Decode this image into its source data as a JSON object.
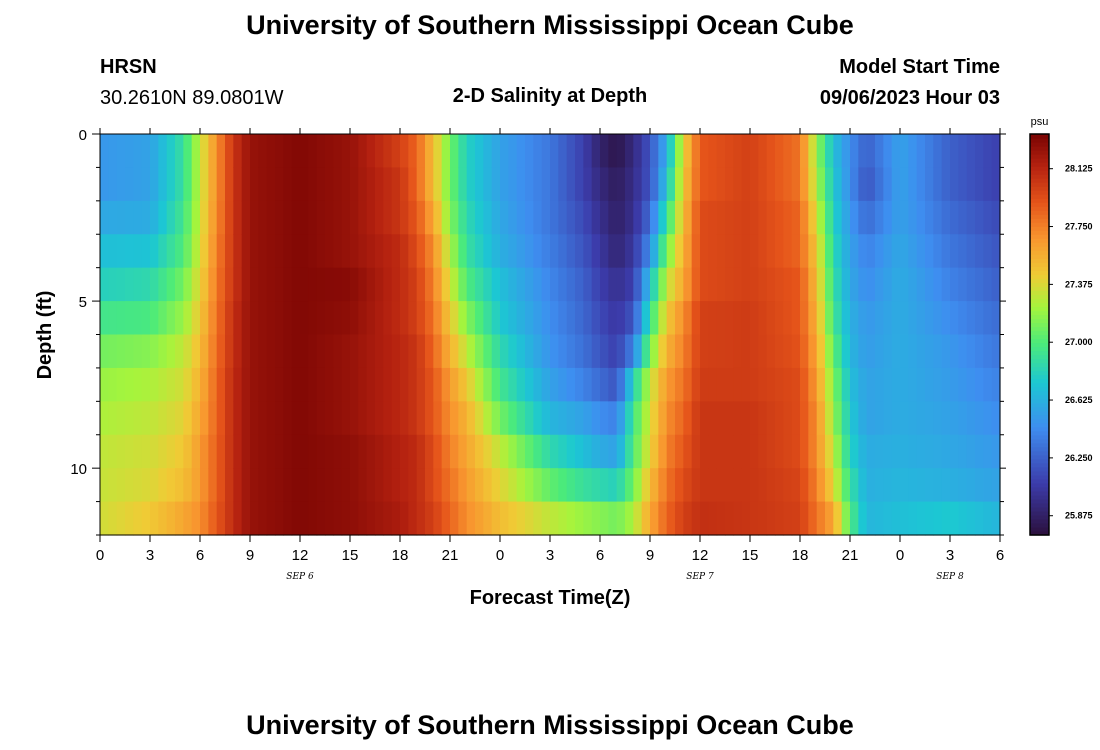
{
  "header": {
    "title": "University of Southern Mississippi Ocean Cube",
    "station": "HRSN",
    "coords": "30.2610N  89.0801W",
    "plot_title": "2-D Salinity at Depth",
    "start_label": "Model Start Time",
    "start_value": "09/06/2023 Hour 03"
  },
  "footer": {
    "title": "University of Southern Mississippi Ocean Cube"
  },
  "chart_data": {
    "type": "heatmap",
    "title": "2-D Salinity at Depth",
    "xlabel": "Forecast Time(Z)",
    "ylabel": "Depth (ft)",
    "x_ticks": [
      "0",
      "3",
      "6",
      "9",
      "12",
      "15",
      "18",
      "21",
      "0",
      "3",
      "6",
      "9",
      "12",
      "15",
      "18",
      "21",
      "0",
      "3",
      "6"
    ],
    "x_range_hours": [
      0,
      54
    ],
    "date_labels": [
      {
        "text": "SEP 6",
        "hour": 12
      },
      {
        "text": "SEP 7",
        "hour": 36
      },
      {
        "text": "SEP 8",
        "hour": 51
      }
    ],
    "y_ticks": [
      0,
      5,
      10
    ],
    "ylim": [
      0,
      12
    ],
    "y_inverted": true,
    "colorbar": {
      "unit": "psu",
      "min": 25.75,
      "max": 28.35,
      "labels": [
        "28.125",
        "27.750",
        "27.375",
        "27.000",
        "26.625",
        "26.250",
        "25.875"
      ]
    },
    "depth_levels_ft": [
      0.5,
      1.5,
      2.5,
      3.5,
      4.5,
      5.5,
      6.5,
      7.5,
      8.5,
      9.5,
      10.5,
      11.5
    ],
    "keyframe_hours": [
      0,
      3,
      5,
      6,
      7,
      8,
      9,
      12,
      15,
      18,
      19,
      20,
      21,
      22,
      24,
      27,
      29,
      30,
      31,
      32,
      33,
      34,
      35,
      36,
      39,
      42,
      43,
      44,
      45,
      46,
      48,
      51,
      54
    ],
    "keyframe_values": [
      [
        26.5,
        26.5,
        26.58,
        26.7,
        26.8,
        26.95,
        27.1,
        27.2,
        27.25,
        27.3,
        27.32,
        27.35
      ],
      [
        26.55,
        26.55,
        26.6,
        26.72,
        26.85,
        26.98,
        27.15,
        27.25,
        27.3,
        27.35,
        27.38,
        27.45
      ],
      [
        26.9,
        26.9,
        26.95,
        27.0,
        27.1,
        27.2,
        27.3,
        27.35,
        27.4,
        27.45,
        27.5,
        27.6
      ],
      [
        27.3,
        27.3,
        27.32,
        27.35,
        27.4,
        27.45,
        27.5,
        27.55,
        27.6,
        27.65,
        27.65,
        27.7
      ],
      [
        27.7,
        27.7,
        27.72,
        27.75,
        27.78,
        27.8,
        27.82,
        27.85,
        27.85,
        27.87,
        27.87,
        27.9
      ],
      [
        28.05,
        28.05,
        28.05,
        28.05,
        28.05,
        28.08,
        28.08,
        28.1,
        28.1,
        28.1,
        28.1,
        28.1
      ],
      [
        28.25,
        28.25,
        28.25,
        28.25,
        28.25,
        28.25,
        28.25,
        28.25,
        28.25,
        28.25,
        28.25,
        28.25
      ],
      [
        28.32,
        28.32,
        28.32,
        28.32,
        28.32,
        28.32,
        28.32,
        28.32,
        28.32,
        28.32,
        28.32,
        28.32
      ],
      [
        28.25,
        28.25,
        28.25,
        28.25,
        28.3,
        28.28,
        28.25,
        28.25,
        28.25,
        28.28,
        28.28,
        28.28
      ],
      [
        28.0,
        28.05,
        28.05,
        28.1,
        28.1,
        28.1,
        28.12,
        28.12,
        28.12,
        28.15,
        28.15,
        28.18
      ],
      [
        27.85,
        27.85,
        27.9,
        27.95,
        28.0,
        28.0,
        28.05,
        28.05,
        28.05,
        28.1,
        28.1,
        28.1
      ],
      [
        27.5,
        27.5,
        27.6,
        27.7,
        27.75,
        27.8,
        27.85,
        27.9,
        27.9,
        27.95,
        27.95,
        28.0
      ],
      [
        27.1,
        27.1,
        27.15,
        27.25,
        27.35,
        27.45,
        27.55,
        27.65,
        27.7,
        27.75,
        27.8,
        27.85
      ],
      [
        26.8,
        26.8,
        26.85,
        26.9,
        27.0,
        27.15,
        27.3,
        27.45,
        27.55,
        27.6,
        27.65,
        27.7
      ],
      [
        26.55,
        26.55,
        26.58,
        26.62,
        26.7,
        26.75,
        26.85,
        26.95,
        27.1,
        27.3,
        27.4,
        27.5
      ],
      [
        26.35,
        26.35,
        26.35,
        26.38,
        26.42,
        26.45,
        26.48,
        26.55,
        26.65,
        26.85,
        27.05,
        27.3
      ],
      [
        26.1,
        26.1,
        26.15,
        26.2,
        26.25,
        26.28,
        26.32,
        26.4,
        26.55,
        26.7,
        26.9,
        27.2
      ],
      [
        25.9,
        25.95,
        26.0,
        26.05,
        26.1,
        26.15,
        26.2,
        26.3,
        26.45,
        26.6,
        26.85,
        27.15
      ],
      [
        25.8,
        25.85,
        25.88,
        25.92,
        26.0,
        26.05,
        26.1,
        26.2,
        26.4,
        26.55,
        26.8,
        27.1
      ],
      [
        25.95,
        25.98,
        26.0,
        26.05,
        26.1,
        26.2,
        26.4,
        26.8,
        26.95,
        27.0,
        27.1,
        27.25
      ],
      [
        26.2,
        26.2,
        26.3,
        26.45,
        26.7,
        26.9,
        27.1,
        27.3,
        27.35,
        27.4,
        27.5,
        27.6
      ],
      [
        26.6,
        26.7,
        26.9,
        27.1,
        27.3,
        27.45,
        27.55,
        27.65,
        27.7,
        27.75,
        27.8,
        27.85
      ],
      [
        27.4,
        27.45,
        27.5,
        27.55,
        27.6,
        27.7,
        27.75,
        27.8,
        27.85,
        27.9,
        27.95,
        28.0
      ],
      [
        27.9,
        27.9,
        27.95,
        27.95,
        27.95,
        28.0,
        28.0,
        28.02,
        28.05,
        28.05,
        28.05,
        28.08
      ],
      [
        28.0,
        28.0,
        28.0,
        28.0,
        28.0,
        28.02,
        28.02,
        28.02,
        28.05,
        28.05,
        28.05,
        28.05
      ],
      [
        27.8,
        27.8,
        27.85,
        27.85,
        27.9,
        27.9,
        27.92,
        27.95,
        27.95,
        27.95,
        27.98,
        28.0
      ],
      [
        27.2,
        27.25,
        27.35,
        27.45,
        27.5,
        27.55,
        27.6,
        27.65,
        27.7,
        27.7,
        27.75,
        27.8
      ],
      [
        26.7,
        26.75,
        26.8,
        26.85,
        26.9,
        26.95,
        27.05,
        27.15,
        27.2,
        27.3,
        27.4,
        27.6
      ],
      [
        26.45,
        26.45,
        26.5,
        26.55,
        26.58,
        26.62,
        26.65,
        26.7,
        26.75,
        26.8,
        26.9,
        27.0
      ],
      [
        26.25,
        26.2,
        26.3,
        26.4,
        26.45,
        26.5,
        26.52,
        26.55,
        26.55,
        26.6,
        26.62,
        26.65
      ],
      [
        26.55,
        26.55,
        26.55,
        26.58,
        26.6,
        26.6,
        26.6,
        26.6,
        26.6,
        26.62,
        26.65,
        26.7
      ],
      [
        26.25,
        26.25,
        26.3,
        26.35,
        26.4,
        26.45,
        26.5,
        26.52,
        26.55,
        26.58,
        26.62,
        26.75
      ],
      [
        26.1,
        26.1,
        26.15,
        26.2,
        26.25,
        26.3,
        26.35,
        26.4,
        26.45,
        26.5,
        26.55,
        26.65
      ]
    ]
  }
}
